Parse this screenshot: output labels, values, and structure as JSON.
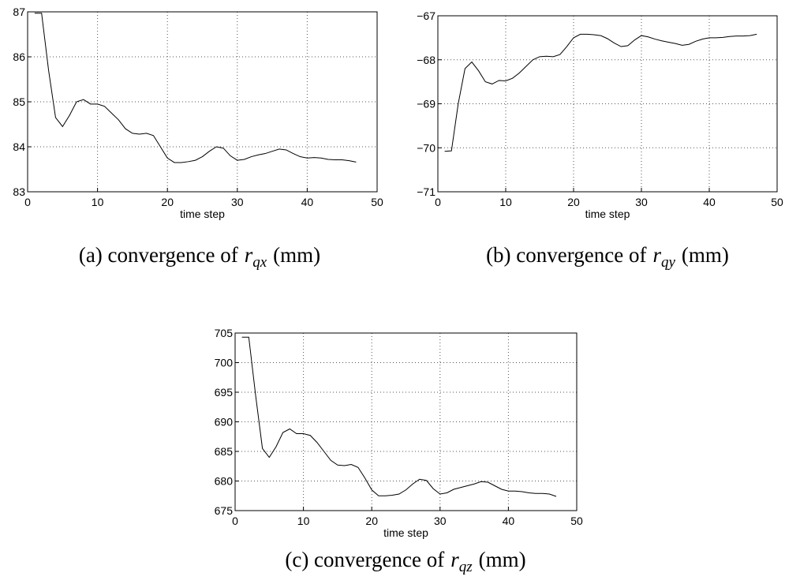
{
  "chart_data": [
    {
      "type": "line",
      "xlabel": "time step",
      "caption": "(a) convergence of",
      "caption_symbol": "r",
      "caption_subscript": "qx",
      "caption_unit": "(mm)",
      "x": [
        1,
        2,
        3,
        4,
        5,
        6,
        7,
        8,
        9,
        10,
        11,
        12,
        13,
        14,
        15,
        16,
        17,
        18,
        19,
        20,
        21,
        22,
        23,
        24,
        25,
        26,
        27,
        28,
        29,
        30,
        31,
        32,
        33,
        34,
        35,
        36,
        37,
        38,
        39,
        40,
        41,
        42,
        43,
        44,
        45,
        46,
        47
      ],
      "values": [
        86.97,
        86.97,
        85.7,
        84.65,
        84.45,
        84.7,
        85.0,
        85.05,
        84.95,
        84.95,
        84.9,
        84.75,
        84.6,
        84.4,
        84.3,
        84.28,
        84.3,
        84.25,
        84.0,
        83.75,
        83.65,
        83.65,
        83.67,
        83.7,
        83.78,
        83.9,
        84.0,
        83.97,
        83.8,
        83.7,
        83.72,
        83.78,
        83.82,
        83.85,
        83.9,
        83.95,
        83.93,
        83.85,
        83.78,
        83.75,
        83.76,
        83.75,
        83.72,
        83.71,
        83.71,
        83.69,
        83.66
      ],
      "color": "#000000",
      "xlim": [
        0,
        50
      ],
      "xticks": [
        0,
        10,
        20,
        30,
        40,
        50
      ],
      "ylim": [
        83,
        87
      ],
      "yticks": [
        83,
        84,
        85,
        86,
        87
      ],
      "grid": true
    },
    {
      "type": "line",
      "xlabel": "time step",
      "caption": "(b) convergence of",
      "caption_symbol": "r",
      "caption_subscript": "qy",
      "caption_unit": "(mm)",
      "x": [
        1,
        2,
        3,
        4,
        5,
        6,
        7,
        8,
        9,
        10,
        11,
        12,
        13,
        14,
        15,
        16,
        17,
        18,
        19,
        20,
        21,
        22,
        23,
        24,
        25,
        26,
        27,
        28,
        29,
        30,
        31,
        32,
        33,
        34,
        35,
        36,
        37,
        38,
        39,
        40,
        41,
        42,
        43,
        44,
        45,
        46,
        47
      ],
      "values": [
        -70.08,
        -70.07,
        -69.0,
        -68.2,
        -68.05,
        -68.25,
        -68.5,
        -68.55,
        -68.47,
        -68.48,
        -68.42,
        -68.3,
        -68.15,
        -68.0,
        -67.93,
        -67.92,
        -67.93,
        -67.88,
        -67.7,
        -67.5,
        -67.42,
        -67.42,
        -67.43,
        -67.45,
        -67.52,
        -67.62,
        -67.7,
        -67.68,
        -67.55,
        -67.45,
        -67.48,
        -67.53,
        -67.57,
        -67.6,
        -67.63,
        -67.67,
        -67.65,
        -67.58,
        -67.53,
        -67.5,
        -67.5,
        -67.49,
        -67.47,
        -67.46,
        -67.46,
        -67.45,
        -67.42
      ],
      "color": "#000000",
      "xlim": [
        0,
        50
      ],
      "xticks": [
        0,
        10,
        20,
        30,
        40,
        50
      ],
      "ylim": [
        -71,
        -67
      ],
      "yticks": [
        {
          "value": -71,
          "label": "−71"
        },
        {
          "value": -70,
          "label": "−70"
        },
        {
          "value": -69,
          "label": "−69"
        },
        {
          "value": -68,
          "label": "−68"
        },
        {
          "value": -67,
          "label": "−67"
        }
      ],
      "grid": true
    },
    {
      "type": "line",
      "xlabel": "time step",
      "caption": "(c) convergence of",
      "caption_symbol": "r",
      "caption_subscript": "qz",
      "caption_unit": "(mm)",
      "x": [
        1,
        2,
        3,
        4,
        5,
        6,
        7,
        8,
        9,
        10,
        11,
        12,
        13,
        14,
        15,
        16,
        17,
        18,
        19,
        20,
        21,
        22,
        23,
        24,
        25,
        26,
        27,
        28,
        29,
        30,
        31,
        32,
        33,
        34,
        35,
        36,
        37,
        38,
        39,
        40,
        41,
        42,
        43,
        44,
        45,
        46,
        47
      ],
      "values": [
        704.3,
        704.3,
        694.5,
        685.5,
        684,
        685.8,
        688.2,
        688.8,
        688,
        688,
        687.7,
        686.5,
        685,
        683.5,
        682.7,
        682.6,
        682.8,
        682.3,
        680.5,
        678.5,
        677.5,
        677.5,
        677.6,
        677.8,
        678.5,
        679.5,
        680.3,
        680.1,
        678.7,
        677.8,
        678,
        678.6,
        678.9,
        679.2,
        679.5,
        679.9,
        679.8,
        679.2,
        678.6,
        678.3,
        678.3,
        678.2,
        678,
        677.9,
        677.9,
        677.8,
        677.4
      ],
      "color": "#000000",
      "xlim": [
        0,
        50
      ],
      "xticks": [
        0,
        10,
        20,
        30,
        40,
        50
      ],
      "ylim": [
        675,
        705
      ],
      "yticks": [
        675,
        680,
        685,
        690,
        695,
        700,
        705
      ],
      "grid": true
    }
  ]
}
